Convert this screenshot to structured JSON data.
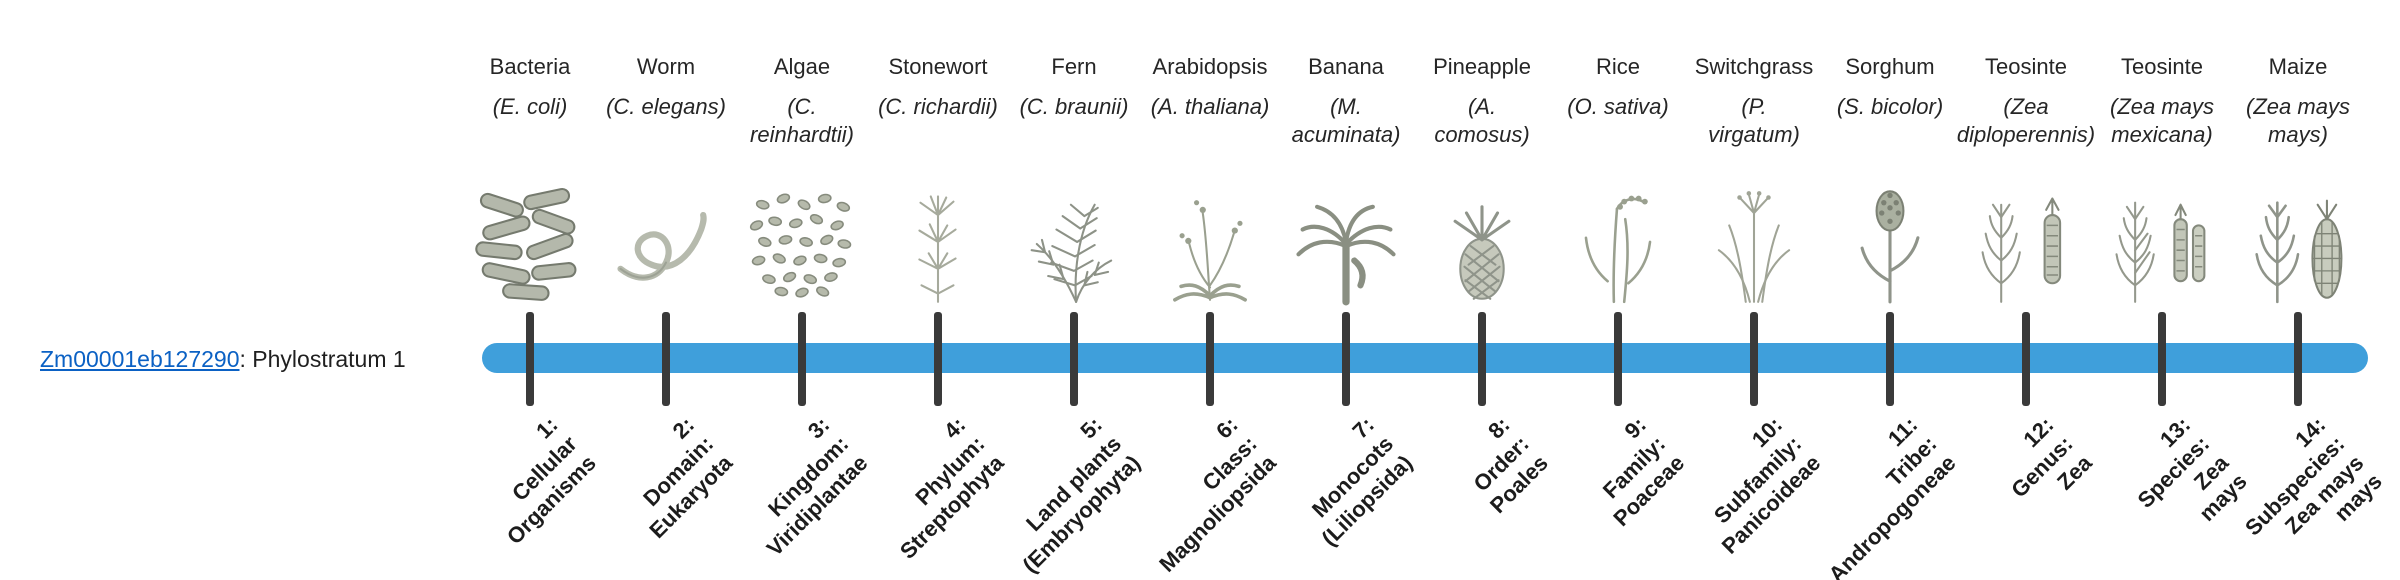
{
  "gene_label": {
    "id": "Zm00001eb127290",
    "suffix": ": Phylostratum 1",
    "link_color": "#0b61c4"
  },
  "timeline": {
    "bar_color": "#3f9fdb",
    "tick_color": "#3a3a3a"
  },
  "organisms": [
    {
      "common": "Bacteria",
      "scientific": "(E. coli)",
      "icon": "bacteria-icon",
      "stratum_label": "1:\nCellular\nOrganisms"
    },
    {
      "common": "Worm",
      "scientific": "(C. elegans)",
      "icon": "worm-icon",
      "stratum_label": "2:\nDomain:\nEukaryota"
    },
    {
      "common": "Algae",
      "scientific": "(C.\nreinhardtii)",
      "icon": "algae-icon",
      "stratum_label": "3:\nKingdom:\nViridiplantae"
    },
    {
      "common": "Stonewort",
      "scientific": "(C. richardii)",
      "icon": "stonewort-icon",
      "stratum_label": "4:\nPhylum:\nStreptophyta"
    },
    {
      "common": "Fern",
      "scientific": "(C. braunii)",
      "icon": "fern-icon",
      "stratum_label": "5:\nLand plants\n(Embryophyta)"
    },
    {
      "common": "Arabidopsis",
      "scientific": "(A. thaliana)",
      "icon": "arabidopsis-icon",
      "stratum_label": "6:\nClass:\nMagnoliopsida"
    },
    {
      "common": "Banana",
      "scientific": "(M.\nacuminata)",
      "icon": "banana-icon",
      "stratum_label": "7:\nMonocots\n(Liliopsida)"
    },
    {
      "common": "Pineapple",
      "scientific": "(A.\ncomosus)",
      "icon": "pineapple-icon",
      "stratum_label": "8:\nOrder:\nPoales"
    },
    {
      "common": "Rice",
      "scientific": "(O. sativa)",
      "icon": "rice-icon",
      "stratum_label": "9:\nFamily:\nPoaceae"
    },
    {
      "common": "Switchgrass",
      "scientific": "(P.\nvirgatum)",
      "icon": "switchgrass-icon",
      "stratum_label": "10:\nSubfamily:\nPanicoideae"
    },
    {
      "common": "Sorghum",
      "scientific": "(S. bicolor)",
      "icon": "sorghum-icon",
      "stratum_label": "11:\nTribe:\nAndropogoneae"
    },
    {
      "common": "Teosinte",
      "scientific": "(Zea\ndiploperennis)",
      "icon": "teosinte-icon",
      "stratum_label": "12:\nGenus:\nZea"
    },
    {
      "common": "Teosinte",
      "scientific": "(Zea mays\nmexicana)",
      "icon": "teosinte2-icon",
      "stratum_label": "13:\nSpecies:\nZea\nmays"
    },
    {
      "common": "Maize",
      "scientific": "(Zea mays\nmays)",
      "icon": "maize-icon",
      "stratum_label": "14:\nSubspecies:\nZea mays\nmays"
    }
  ]
}
